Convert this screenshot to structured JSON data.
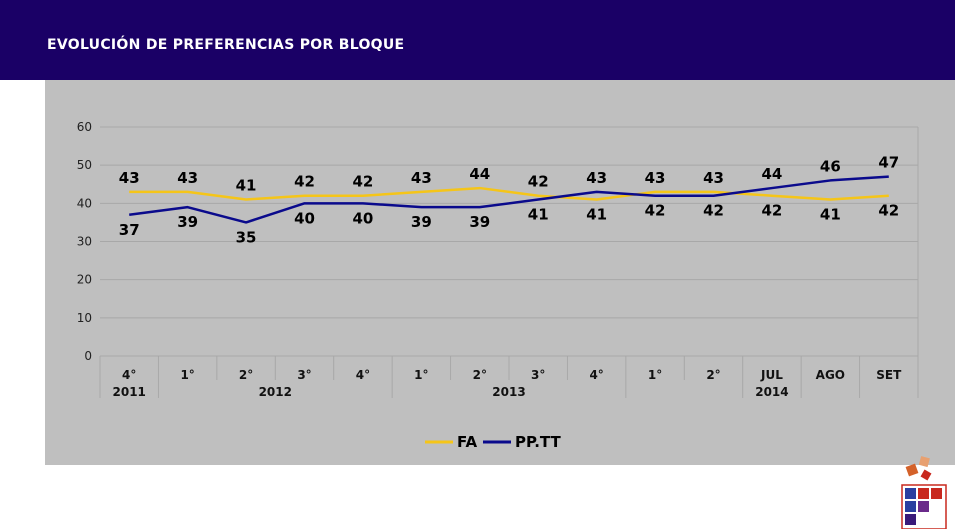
{
  "header": {
    "title": "EVOLUCIÓN DE PREFERENCIAS POR BLOQUE"
  },
  "chart_data": {
    "type": "line",
    "title": "EVOLUCIÓN DE PREFERENCIAS POR BLOQUE",
    "categories": [
      "4°",
      "1°",
      "2°",
      "3°",
      "4°",
      "1°",
      "2°",
      "3°",
      "4°",
      "1°",
      "2°",
      "JUL",
      "AGO",
      "SET"
    ],
    "year_groups": [
      {
        "label": "2011",
        "start": 0,
        "end": 0
      },
      {
        "label": "2012",
        "start": 1,
        "end": 4
      },
      {
        "label": "2013",
        "start": 5,
        "end": 8
      },
      {
        "label": "",
        "start": 9,
        "end": 10
      },
      {
        "label": "2014",
        "start": 11,
        "end": 11
      },
      {
        "label": "",
        "start": 12,
        "end": 12
      },
      {
        "label": "",
        "start": 13,
        "end": 13
      }
    ],
    "series": [
      {
        "name": "FA",
        "color": "#f5c518",
        "values": [
          43,
          43,
          41,
          42,
          42,
          43,
          44,
          42,
          41,
          43,
          43,
          42,
          41,
          42
        ]
      },
      {
        "name": "PP.TT",
        "color": "#0a0a8c",
        "values": [
          37,
          39,
          35,
          40,
          40,
          39,
          39,
          41,
          43,
          42,
          42,
          44,
          46,
          47
        ]
      }
    ],
    "ylim": [
      0,
      60
    ],
    "yticks": [
      0,
      10,
      20,
      30,
      40,
      50,
      60
    ],
    "grid": true,
    "legend_position": "bottom"
  }
}
